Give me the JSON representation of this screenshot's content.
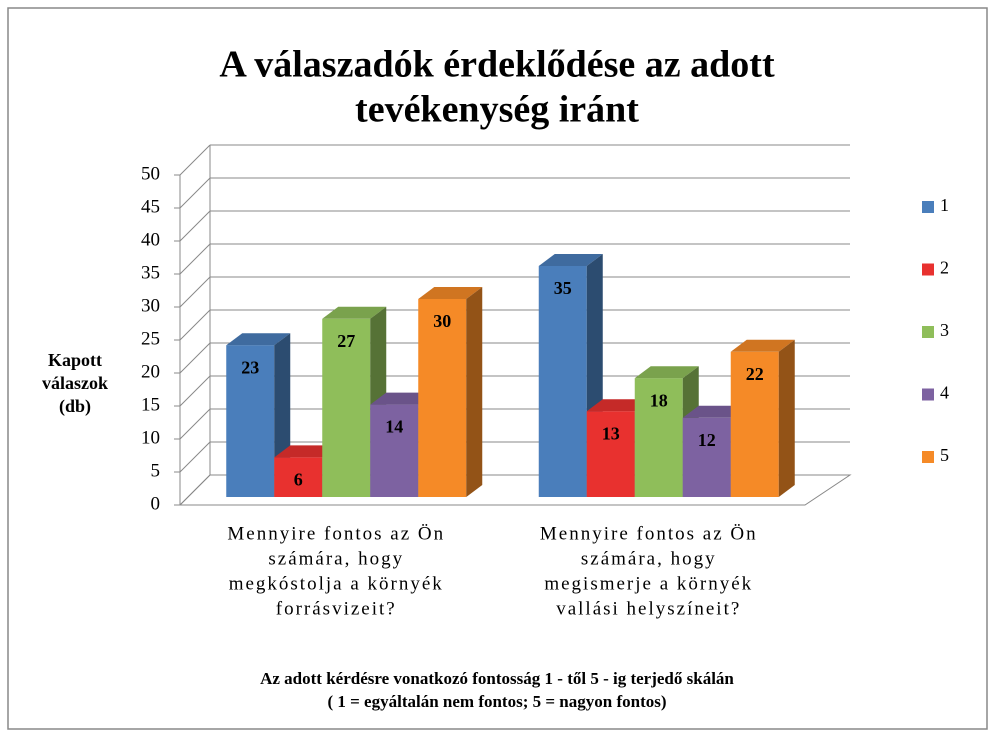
{
  "chart_data": {
    "type": "bar3d",
    "title": [
      "A válaszadók érdeklődése az adott",
      "tevékenység iránt"
    ],
    "y_label": [
      "Kapott",
      "válaszok",
      "(db)"
    ],
    "x_label": [
      "Az adott kérdésre vonatkozó fontosság 1 - től 5 - ig terjedő  skálán",
      "( 1 = egyáltalán nem fontos; 5 = nagyon fontos)"
    ],
    "categories": [
      [
        "Mennyire fontos az Ön",
        "számára, hogy",
        "megkóstolja a környék",
        "forrásvizeit?"
      ],
      [
        "Mennyire fontos az Ön",
        "számára, hogy",
        "megismerje a környék",
        "vallási helyszíneit?"
      ]
    ],
    "series": [
      {
        "name": "1",
        "color": "#4a7ebb",
        "values": [
          23,
          35
        ]
      },
      {
        "name": "2",
        "color": "#e8312f",
        "values": [
          6,
          13
        ]
      },
      {
        "name": "3",
        "color": "#8fbe5a",
        "values": [
          27,
          18
        ]
      },
      {
        "name": "4",
        "color": "#7d62a1",
        "values": [
          14,
          12
        ]
      },
      {
        "name": "5",
        "color": "#f58a27",
        "values": [
          30,
          22
        ]
      }
    ],
    "ylim": [
      0,
      50
    ],
    "yticks": [
      0,
      5,
      10,
      15,
      20,
      25,
      30,
      35,
      40,
      45,
      50
    ],
    "grid": true,
    "legend": "right"
  }
}
